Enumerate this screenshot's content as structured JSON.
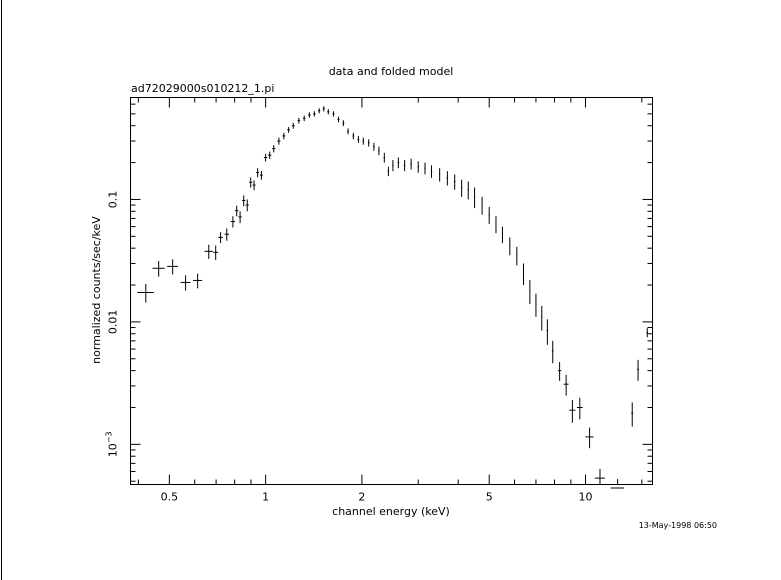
{
  "chart_data": {
    "type": "scatter",
    "title": "data and folded model",
    "subtitle": "ad72029000s010212_1.pi",
    "x_label": "channel energy (keV)",
    "y_label": "normalized counts/sec/keV",
    "timestamp": "13-May-1998 06:50",
    "color": "#000000",
    "xlog": true,
    "ylog": true,
    "xlim": [
      0.378,
      16.2
    ],
    "ylim": [
      0.00047,
      0.68
    ],
    "xticks": [
      0.5,
      1,
      2,
      5,
      10
    ],
    "xminorticks": [
      0.4,
      0.6,
      0.7,
      0.8,
      0.9,
      3,
      4,
      6,
      7,
      8,
      9,
      15
    ],
    "yticks": [
      {
        "value": 0.001,
        "label": "10",
        "superscript": "−3"
      },
      0.01,
      0.1
    ],
    "yminorticks": [
      0.0005,
      0.0006,
      0.0007,
      0.0008,
      0.0009,
      0.002,
      0.003,
      0.004,
      0.005,
      0.006,
      0.007,
      0.008,
      0.009,
      0.02,
      0.03,
      0.04,
      0.05,
      0.06,
      0.07,
      0.08,
      0.09,
      0.2,
      0.3,
      0.4,
      0.5,
      0.6
    ],
    "x": [
      0.422,
      0.463,
      0.512,
      0.562,
      0.613,
      0.664,
      0.698,
      0.723,
      0.756,
      0.79,
      0.812,
      0.832,
      0.854,
      0.876,
      0.898,
      0.92,
      0.944,
      0.97,
      1.0,
      1.03,
      1.06,
      1.1,
      1.14,
      1.18,
      1.22,
      1.27,
      1.32,
      1.37,
      1.42,
      1.47,
      1.52,
      1.57,
      1.63,
      1.69,
      1.75,
      1.81,
      1.88,
      1.95,
      2.02,
      2.1,
      2.18,
      2.26,
      2.35,
      2.42,
      2.5,
      2.6,
      2.72,
      2.85,
      3.0,
      3.15,
      3.3,
      3.5,
      3.7,
      3.9,
      4.1,
      4.3,
      4.5,
      4.75,
      5.0,
      5.25,
      5.5,
      5.8,
      6.1,
      6.4,
      6.7,
      7.0,
      7.3,
      7.6,
      7.9,
      8.3,
      8.7,
      9.1,
      9.6,
      10.3,
      11.1,
      12.6,
      14.0,
      14.6,
      15.6
    ],
    "x_err": [
      0.025,
      0.02,
      0.02,
      0.02,
      0.02,
      0.02,
      0.012,
      0.012,
      0.012,
      0.012,
      0.01,
      0.01,
      0.01,
      0.01,
      0.01,
      0.01,
      0.01,
      0.01,
      0.012,
      0.012,
      0.012,
      0.012,
      0.012,
      0.012,
      0.012,
      0.012,
      0.012,
      0.012,
      0.012,
      0.012,
      0.012,
      0.012,
      0.012,
      0.012,
      0.012,
      0.012,
      0.012,
      0.012,
      0.012,
      0.012,
      0.012,
      0.012,
      0.012,
      0.012,
      0.012,
      0.015,
      0.015,
      0.015,
      0.015,
      0.015,
      0.015,
      0.015,
      0.02,
      0.02,
      0.02,
      0.02,
      0.02,
      0.02,
      0.02,
      0.02,
      0.02,
      0.02,
      0.02,
      0.02,
      0.02,
      0.03,
      0.03,
      0.04,
      0.05,
      0.1,
      0.15,
      0.2,
      0.2,
      0.3,
      0.4,
      0.6,
      0.1,
      0.1,
      0.08
    ],
    "values": [
      0.0174,
      0.0274,
      0.0284,
      0.021,
      0.0218,
      0.0377,
      0.037,
      0.049,
      0.052,
      0.066,
      0.081,
      0.072,
      0.098,
      0.09,
      0.138,
      0.131,
      0.166,
      0.158,
      0.22,
      0.23,
      0.26,
      0.3,
      0.33,
      0.37,
      0.4,
      0.44,
      0.46,
      0.49,
      0.5,
      0.53,
      0.55,
      0.52,
      0.5,
      0.45,
      0.42,
      0.36,
      0.33,
      0.31,
      0.3,
      0.29,
      0.27,
      0.25,
      0.22,
      0.17,
      0.19,
      0.2,
      0.19,
      0.195,
      0.185,
      0.18,
      0.17,
      0.16,
      0.15,
      0.14,
      0.125,
      0.12,
      0.105,
      0.09,
      0.075,
      0.063,
      0.052,
      0.042,
      0.035,
      0.025,
      0.018,
      0.014,
      0.011,
      0.0085,
      0.0058,
      0.004,
      0.0031,
      0.0019,
      0.002,
      0.00115,
      0.00053,
      0.00044,
      0.0018,
      0.0041,
      0.0082
    ],
    "y_err": [
      0.003,
      0.004,
      0.004,
      0.003,
      0.003,
      0.005,
      0.005,
      0.005,
      0.006,
      0.007,
      0.008,
      0.008,
      0.01,
      0.01,
      0.013,
      0.012,
      0.014,
      0.013,
      0.016,
      0.016,
      0.018,
      0.02,
      0.02,
      0.02,
      0.022,
      0.024,
      0.024,
      0.025,
      0.025,
      0.026,
      0.027,
      0.026,
      0.025,
      0.024,
      0.023,
      0.02,
      0.02,
      0.02,
      0.02,
      0.02,
      0.02,
      0.02,
      0.02,
      0.015,
      0.02,
      0.02,
      0.02,
      0.02,
      0.02,
      0.02,
      0.02,
      0.02,
      0.02,
      0.02,
      0.02,
      0.02,
      0.02,
      0.015,
      0.012,
      0.01,
      0.008,
      0.007,
      0.006,
      0.005,
      0.004,
      0.003,
      0.0025,
      0.002,
      0.0012,
      0.0007,
      0.0006,
      0.0004,
      0.0004,
      0.00022,
      0.0001,
      8e-05,
      0.0004,
      0.0008,
      0.0007
    ]
  }
}
